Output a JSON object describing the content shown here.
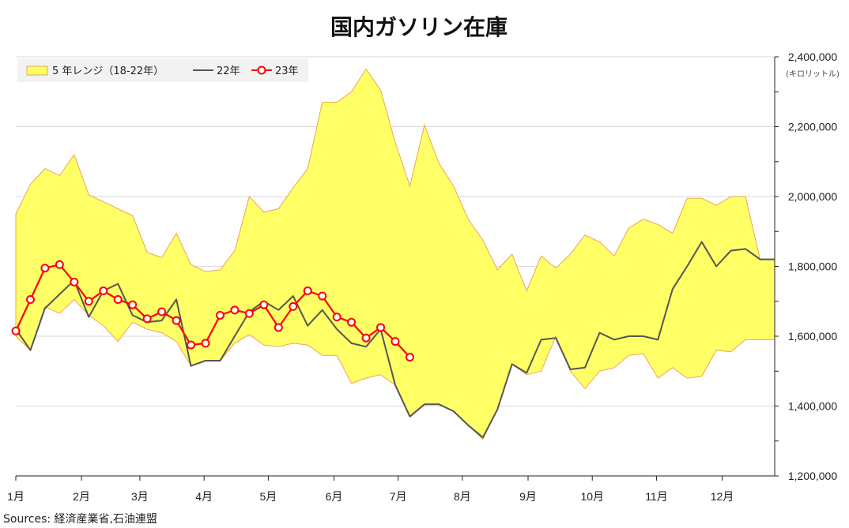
{
  "chart_data": {
    "type": "area",
    "title": "国内ガソリン在庫",
    "y_unit": "(キロリットル)",
    "ylim": [
      1200000,
      2400000
    ],
    "y_ticks": [
      "1,200,000",
      "1,400,000",
      "1,600,000",
      "1,800,000",
      "2,000,000",
      "2,200,000",
      "2,400,000"
    ],
    "x_range_weeks": [
      1,
      53
    ],
    "x_ticks": [
      {
        "week": 1,
        "label": "1月"
      },
      {
        "week": 5.5,
        "label": "2月"
      },
      {
        "week": 9.5,
        "label": "3月"
      },
      {
        "week": 13.9,
        "label": "4月"
      },
      {
        "week": 18.3,
        "label": "5月"
      },
      {
        "week": 22.8,
        "label": "6月"
      },
      {
        "week": 27.2,
        "label": "7月"
      },
      {
        "week": 31.6,
        "label": "8月"
      },
      {
        "week": 36.1,
        "label": "9月"
      },
      {
        "week": 40.5,
        "label": "10月"
      },
      {
        "week": 44.9,
        "label": "11月"
      },
      {
        "week": 49.4,
        "label": "12月"
      }
    ],
    "range_band": {
      "name": "5 年レンジ（18-22年）",
      "weeks": [
        1,
        2,
        3,
        4,
        5,
        6,
        7,
        8,
        9,
        10,
        11,
        12,
        13,
        14,
        15,
        16,
        17,
        18,
        19,
        20,
        21,
        22,
        23,
        24,
        25,
        26,
        27,
        28,
        29,
        30,
        31,
        32,
        33,
        34,
        35,
        36,
        37,
        38,
        39,
        40,
        41,
        42,
        43,
        44,
        45,
        46,
        47,
        48,
        49,
        50,
        51,
        52,
        53
      ],
      "max": [
        1950000,
        2035000,
        2080000,
        2060000,
        2120000,
        2005000,
        1985000,
        1965000,
        1945000,
        1840000,
        1825000,
        1895000,
        1805000,
        1785000,
        1790000,
        1845000,
        2000000,
        1955000,
        1965000,
        2025000,
        2080000,
        2270000,
        2270000,
        2300000,
        2365000,
        2305000,
        2155000,
        2030000,
        2205000,
        2095000,
        2030000,
        1935000,
        1875000,
        1790000,
        1835000,
        1730000,
        1830000,
        1795000,
        1835000,
        1890000,
        1870000,
        1830000,
        1910000,
        1935000,
        1920000,
        1895000,
        1995000,
        1995000,
        1975000,
        2000000,
        2000000,
        1820000,
        1820000
      ],
      "min": [
        1600000,
        1560000,
        1685000,
        1665000,
        1705000,
        1660000,
        1630000,
        1585000,
        1640000,
        1620000,
        1610000,
        1585000,
        1515000,
        1530000,
        1530000,
        1580000,
        1605000,
        1575000,
        1570000,
        1580000,
        1575000,
        1545000,
        1545000,
        1465000,
        1480000,
        1490000,
        1460000,
        1370000,
        1405000,
        1405000,
        1385000,
        1345000,
        1305000,
        1390000,
        1520000,
        1490000,
        1500000,
        1600000,
        1500000,
        1450000,
        1500000,
        1510000,
        1545000,
        1550000,
        1480000,
        1510000,
        1480000,
        1485000,
        1560000,
        1555000,
        1590000,
        1590000,
        1590000
      ]
    },
    "series": [
      {
        "name": "22年",
        "color": "#555555",
        "weeks": [
          1,
          2,
          3,
          4,
          5,
          6,
          7,
          8,
          9,
          10,
          11,
          12,
          13,
          14,
          15,
          16,
          17,
          18,
          19,
          20,
          21,
          22,
          23,
          24,
          25,
          26,
          27,
          28,
          29,
          30,
          31,
          32,
          33,
          34,
          35,
          36,
          37,
          38,
          39,
          40,
          41,
          42,
          43,
          44,
          45,
          46,
          47,
          48,
          49,
          50,
          51,
          52,
          53
        ],
        "values": [
          1620000,
          1560000,
          1680000,
          1720000,
          1760000,
          1655000,
          1730000,
          1750000,
          1660000,
          1640000,
          1645000,
          1705000,
          1515000,
          1530000,
          1530000,
          1600000,
          1670000,
          1700000,
          1675000,
          1715000,
          1630000,
          1675000,
          1620000,
          1580000,
          1570000,
          1620000,
          1460000,
          1370000,
          1405000,
          1405000,
          1385000,
          1345000,
          1310000,
          1390000,
          1520000,
          1495000,
          1590000,
          1595000,
          1505000,
          1510000,
          1610000,
          1590000,
          1600000,
          1600000,
          1590000,
          1735000,
          1800000,
          1870000,
          1800000,
          1845000,
          1850000,
          1820000,
          1820000
        ]
      },
      {
        "name": "23年",
        "color": "#ff0000",
        "marker": "circle",
        "weeks": [
          1,
          2,
          3,
          4,
          5,
          6,
          7,
          8,
          9,
          10,
          11,
          12,
          13,
          14,
          15,
          16,
          17,
          18,
          19,
          20,
          21,
          22,
          23,
          24,
          25,
          26,
          27,
          28
        ],
        "values": [
          1615000,
          1705000,
          1795000,
          1805000,
          1755000,
          1700000,
          1730000,
          1705000,
          1690000,
          1650000,
          1670000,
          1645000,
          1575000,
          1580000,
          1660000,
          1675000,
          1665000,
          1690000,
          1625000,
          1685000,
          1730000,
          1715000,
          1655000,
          1640000,
          1595000,
          1625000,
          1585000,
          1540000
        ]
      }
    ],
    "legend": {
      "position": "top-left",
      "items": [
        "5 年レンジ（18-22年）",
        "22年",
        "23年"
      ]
    },
    "grid": true,
    "band_fill": "#ffff66",
    "band_stroke": "#f0a35a"
  },
  "source_note": "Sources: 経済産業省,石油連盟"
}
